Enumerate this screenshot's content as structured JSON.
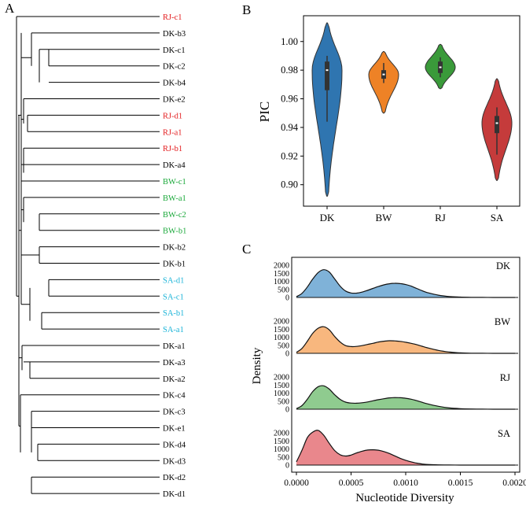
{
  "chart_data": [
    {
      "type": "dendrogram",
      "panel_label": "A",
      "leaves": [
        {
          "label": "RJ-c1",
          "group": "RJ"
        },
        {
          "label": "DK-b3",
          "group": "DK"
        },
        {
          "label": "DK-c1",
          "group": "DK"
        },
        {
          "label": "DK-c2",
          "group": "DK"
        },
        {
          "label": "DK-b4",
          "group": "DK"
        },
        {
          "label": "DK-e2",
          "group": "DK"
        },
        {
          "label": "RJ-d1",
          "group": "RJ"
        },
        {
          "label": "RJ-a1",
          "group": "RJ"
        },
        {
          "label": "RJ-b1",
          "group": "RJ"
        },
        {
          "label": "DK-a4",
          "group": "DK"
        },
        {
          "label": "BW-c1",
          "group": "BW"
        },
        {
          "label": "BW-a1",
          "group": "BW"
        },
        {
          "label": "BW-c2",
          "group": "BW"
        },
        {
          "label": "BW-b1",
          "group": "BW"
        },
        {
          "label": "DK-b2",
          "group": "DK"
        },
        {
          "label": "DK-b1",
          "group": "DK"
        },
        {
          "label": "SA-d1",
          "group": "SA"
        },
        {
          "label": "SA-c1",
          "group": "SA"
        },
        {
          "label": "SA-b1",
          "group": "SA"
        },
        {
          "label": "SA-a1",
          "group": "SA"
        },
        {
          "label": "DK-a1",
          "group": "DK"
        },
        {
          "label": "DK-a3",
          "group": "DK"
        },
        {
          "label": "DK-a2",
          "group": "DK"
        },
        {
          "label": "DK-c4",
          "group": "DK"
        },
        {
          "label": "DK-c3",
          "group": "DK"
        },
        {
          "label": "DK-e1",
          "group": "DK"
        },
        {
          "label": "DK-d4",
          "group": "DK"
        },
        {
          "label": "DK-d3",
          "group": "DK"
        },
        {
          "label": "DK-d2",
          "group": "DK"
        },
        {
          "label": "DK-d1",
          "group": "DK"
        }
      ],
      "group_colors": {
        "DK": "#000000",
        "RJ": "#e31a1c",
        "BW": "#1aa83a",
        "SA": "#1cb4d8"
      }
    },
    {
      "type": "violin",
      "panel_label": "B",
      "ylabel": "PIC",
      "ylim": [
        0.885,
        1.018
      ],
      "yticks": [
        "0.90",
        "0.92",
        "0.94",
        "0.96",
        "0.98",
        "1.00"
      ],
      "categories": [
        "DK",
        "BW",
        "RJ",
        "SA"
      ],
      "colors": [
        "#2f75b0",
        "#ee8226",
        "#3a9a3a",
        "#c53b3b"
      ],
      "series": [
        {
          "name": "DK",
          "min": 0.892,
          "max": 1.013,
          "q1": 0.966,
          "median": 0.98,
          "q3": 0.986,
          "wlo": 0.944,
          "whi": 0.99
        },
        {
          "name": "BW",
          "min": 0.95,
          "max": 0.993,
          "q1": 0.974,
          "median": 0.977,
          "q3": 0.98,
          "wlo": 0.971,
          "whi": 0.985
        },
        {
          "name": "RJ",
          "min": 0.967,
          "max": 0.998,
          "q1": 0.978,
          "median": 0.982,
          "q3": 0.986,
          "wlo": 0.975,
          "whi": 0.989
        },
        {
          "name": "SA",
          "min": 0.903,
          "max": 0.974,
          "q1": 0.936,
          "median": 0.943,
          "q3": 0.948,
          "wlo": 0.921,
          "whi": 0.954
        }
      ]
    },
    {
      "type": "area",
      "panel_label": "C",
      "xlabel": "Nucleotide Diversity",
      "ylabel": "Density",
      "xlim": [
        0.0,
        0.002
      ],
      "xticks": [
        "0.0000",
        "0.0005",
        "0.0010",
        "0.0015",
        "0.0020"
      ],
      "yticks": [
        "0",
        "500",
        "1000",
        "1500",
        "2000"
      ],
      "series": [
        {
          "name": "DK",
          "color": "#7fb2d8",
          "x": [
            0.0,
            5e-05,
            0.0001,
            0.00015,
            0.0002,
            0.00025,
            0.0003,
            0.00035,
            0.0004,
            0.00045,
            0.0005,
            0.00055,
            0.0006,
            0.00065,
            0.0007,
            0.00075,
            0.0008,
            0.00085,
            0.0009,
            0.00095,
            0.001,
            0.00105,
            0.0011,
            0.00115,
            0.0012,
            0.0013,
            0.0014,
            0.0015,
            0.0016,
            0.0017,
            0.0018,
            0.0019,
            0.002
          ],
          "values": [
            50,
            250,
            650,
            1150,
            1550,
            1720,
            1580,
            1150,
            700,
            400,
            280,
            270,
            330,
            440,
            560,
            680,
            780,
            850,
            880,
            860,
            800,
            700,
            560,
            420,
            300,
            140,
            60,
            25,
            10,
            5,
            0,
            0,
            0
          ]
        },
        {
          "name": "BW",
          "color": "#f8b77e",
          "x": [
            0.0,
            5e-05,
            0.0001,
            0.00015,
            0.0002,
            0.00025,
            0.0003,
            0.00035,
            0.0004,
            0.00045,
            0.0005,
            0.00055,
            0.0006,
            0.00065,
            0.0007,
            0.00075,
            0.0008,
            0.00085,
            0.0009,
            0.00095,
            0.001,
            0.00105,
            0.0011,
            0.00115,
            0.0012,
            0.0013,
            0.0014,
            0.0015,
            0.0016,
            0.0017,
            0.0018,
            0.0019,
            0.002
          ],
          "values": [
            60,
            300,
            750,
            1250,
            1560,
            1650,
            1460,
            1050,
            700,
            480,
            420,
            430,
            480,
            550,
            620,
            700,
            750,
            780,
            770,
            740,
            690,
            620,
            540,
            440,
            340,
            180,
            80,
            30,
            10,
            5,
            0,
            0,
            0
          ]
        },
        {
          "name": "RJ",
          "color": "#8fcb8f",
          "x": [
            0.0,
            5e-05,
            0.0001,
            0.00015,
            0.0002,
            0.00025,
            0.0003,
            0.00035,
            0.0004,
            0.00045,
            0.0005,
            0.00055,
            0.0006,
            0.00065,
            0.0007,
            0.00075,
            0.0008,
            0.00085,
            0.0009,
            0.00095,
            0.001,
            0.00105,
            0.0011,
            0.00115,
            0.0012,
            0.0013,
            0.0014,
            0.0015,
            0.0016,
            0.0017,
            0.0018,
            0.0019,
            0.002
          ],
          "values": [
            40,
            220,
            620,
            1100,
            1400,
            1450,
            1250,
            900,
            610,
            440,
            380,
            370,
            400,
            450,
            520,
            590,
            650,
            700,
            720,
            710,
            680,
            620,
            530,
            430,
            330,
            180,
            80,
            35,
            15,
            5,
            0,
            0,
            0
          ]
        },
        {
          "name": "SA",
          "color": "#e9878c",
          "x": [
            0.0,
            5e-05,
            0.0001,
            0.00015,
            0.0002,
            0.00025,
            0.0003,
            0.00035,
            0.0004,
            0.00045,
            0.0005,
            0.00055,
            0.0006,
            0.00065,
            0.0007,
            0.00075,
            0.0008,
            0.00085,
            0.0009,
            0.00095,
            0.001,
            0.00105,
            0.0011,
            0.00115,
            0.0012,
            0.0013,
            0.0014,
            0.0015,
            0.0016,
            0.0017,
            0.0018,
            0.0019,
            0.002
          ],
          "values": [
            200,
            900,
            1700,
            2050,
            2150,
            1850,
            1350,
            900,
            640,
            560,
            620,
            750,
            860,
            930,
            950,
            920,
            840,
            720,
            570,
            420,
            300,
            200,
            120,
            70,
            40,
            15,
            5,
            0,
            0,
            0,
            0,
            0,
            0
          ]
        }
      ]
    }
  ]
}
